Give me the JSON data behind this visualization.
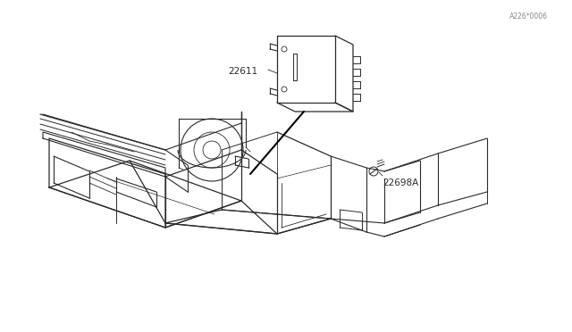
{
  "background_color": "#ffffff",
  "line_color": "#2a2a2a",
  "label_22698A": "22698A",
  "label_22611": "22611",
  "watermark": "A226*0006",
  "figsize": [
    6.4,
    3.72
  ],
  "dpi": 100
}
